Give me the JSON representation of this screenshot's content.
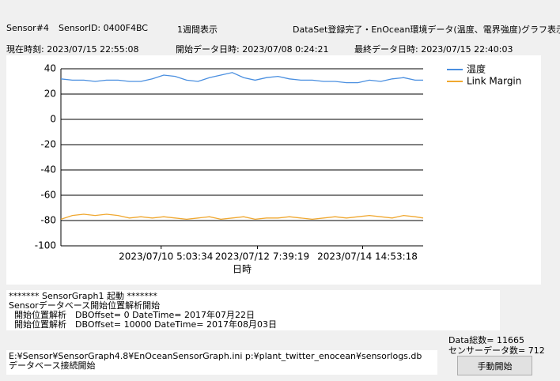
{
  "header": {
    "sensor": "Sensor#4",
    "sensor_id": "SensorID: 0400F4BC",
    "period": "1週間表示",
    "status": "DataSet登録完了・EnOcean環境データ(温度、電界強度)グラフ表示完"
  },
  "times": {
    "now": "現在時刻: 2023/07/15 22:55:08",
    "start": "開始データ日時: 2023/07/08 0:24:21",
    "last": "最終データ日時: 2023/07/15 22:40:03"
  },
  "chart_data": {
    "type": "line",
    "x_label": "日時",
    "grid": true,
    "x": [
      "2023/07/08 0:24:21",
      "2023/07/08 6:24:21",
      "2023/07/08 12:24:21",
      "2023/07/08 18:24:21",
      "2023/07/09 0:24:21",
      "2023/07/09 6:24:21",
      "2023/07/09 12:24:21",
      "2023/07/09 18:24:21",
      "2023/07/10 0:24:21",
      "2023/07/10 6:24:21",
      "2023/07/10 12:24:21",
      "2023/07/10 18:24:21",
      "2023/07/11 0:24:21",
      "2023/07/11 6:24:21",
      "2023/07/11 12:24:21",
      "2023/07/11 18:24:21",
      "2023/07/12 0:24:21",
      "2023/07/12 6:24:21",
      "2023/07/12 12:24:21",
      "2023/07/12 18:24:21",
      "2023/07/13 0:24:21",
      "2023/07/13 6:24:21",
      "2023/07/13 12:24:21",
      "2023/07/13 18:24:21",
      "2023/07/14 0:24:21",
      "2023/07/14 6:24:21",
      "2023/07/14 12:24:21",
      "2023/07/14 18:24:21",
      "2023/07/15 0:24:21",
      "2023/07/15 6:24:21",
      "2023/07/15 12:24:21",
      "2023/07/15 18:24:21",
      "2023/07/15 22:40:03"
    ],
    "series": [
      {
        "name": "温度",
        "color": "#4a8fe0",
        "values": [
          32,
          31,
          31,
          30,
          31,
          31,
          30,
          30,
          32,
          35,
          34,
          31,
          30,
          33,
          35,
          37,
          33,
          31,
          33,
          34,
          32,
          31,
          31,
          30,
          30,
          29,
          29,
          31,
          30,
          32,
          33,
          31,
          31
        ]
      },
      {
        "name": "Link Margin",
        "color": "#f0a830",
        "values": [
          -79,
          -76,
          -75,
          -76,
          -75,
          -76,
          -78,
          -77,
          -78,
          -77,
          -78,
          -79,
          -78,
          -77,
          -79,
          -78,
          -77,
          -79,
          -78,
          -78,
          -77,
          -78,
          -79,
          -78,
          -77,
          -78,
          -77,
          -76,
          -77,
          -78,
          -76,
          -77,
          -78
        ]
      }
    ],
    "xlim": [
      "2023/07/08 0:24:21",
      "2023/07/15 22:40:03"
    ],
    "xticks": [
      "2023/07/10 5:03:34",
      "2023/07/12 7:39:19",
      "2023/07/14 14:53:18"
    ],
    "ylim": [
      -100,
      40
    ],
    "yticks": [
      -100,
      -80,
      -60,
      -40,
      -20,
      0,
      20,
      40
    ]
  },
  "log1": [
    "******* SensorGraph1 起動 *******",
    "Sensorデータベース開始位置解析開始",
    "  開始位置解析　DBOffset= 0 DateTime= 2017年07月22日",
    "  開始位置解析　DBOffset= 10000 DateTime= 2017年08月03日"
  ],
  "log2": [
    "E:¥Sensor¥SensorGraph4.8¥EnOceanSensorGraph.ini p:¥plant_twitter_enocean¥sensorlogs.db",
    "データベース接続開始"
  ],
  "stats": {
    "total": "Data総数= 11665",
    "sensor_count": "センサーデータ数= 712"
  },
  "button": "手動開始"
}
